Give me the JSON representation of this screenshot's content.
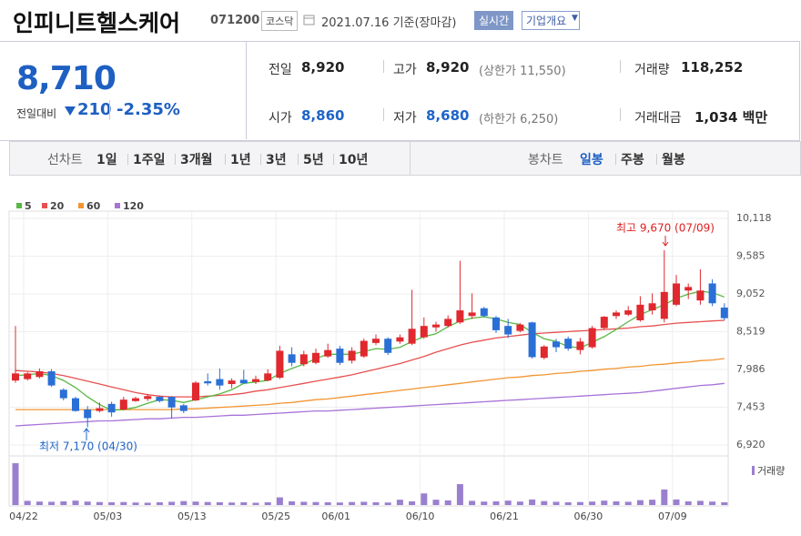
{
  "header": {
    "title": "인피니트헬스케어",
    "code": "071200",
    "market": "코스닥",
    "date": "2021.07.16 기준(장마감)",
    "buttons": [
      "실시간",
      "기업개요"
    ]
  },
  "summary": {
    "price": "8,710",
    "change_label": "전일대비",
    "change": "210",
    "change_pct": "-2.35%",
    "items": [
      {
        "label": "전일",
        "value": "8,920"
      },
      {
        "label": "고가",
        "value": "8,920",
        "note": "(상한가 11,550)"
      },
      {
        "label": "거래량",
        "value": "118,252"
      },
      {
        "label": "시가",
        "value": "8,860",
        "color": "#1e64c8"
      },
      {
        "label": "저가",
        "value": "8,680",
        "note": "(하한가 6,250)",
        "color": "#1e64c8"
      },
      {
        "label": "거래대금",
        "value": "1,034 백만"
      }
    ]
  },
  "tabs": {
    "line_label": "선차트",
    "line_options": [
      "1일",
      "1주일",
      "3개월",
      "1년",
      "3년",
      "5년",
      "10년"
    ],
    "candle_label": "봉차트",
    "candle_options": [
      "일봉",
      "주봉",
      "월봉"
    ],
    "selected": 0
  },
  "chart_data": {
    "type": "candlestick",
    "categories": [
      "04/22",
      null,
      null,
      null,
      null,
      null,
      null,
      "05/03",
      null,
      null,
      null,
      null,
      null,
      null,
      "05/13",
      null,
      null,
      null,
      null,
      null,
      null,
      "05/25",
      null,
      null,
      null,
      null,
      "06/01",
      null,
      null,
      null,
      null,
      null,
      null,
      "06/10",
      null,
      null,
      null,
      null,
      null,
      null,
      "06/21",
      null,
      null,
      null,
      null,
      null,
      null,
      "06/30",
      null,
      null,
      null,
      null,
      null,
      null,
      "07/09",
      null,
      null,
      null,
      null,
      null
    ],
    "open": [
      7830,
      7850,
      7880,
      7960,
      7700,
      7580,
      7420,
      7400,
      7500,
      7420,
      7540,
      7570,
      7600,
      7600,
      7480,
      7550,
      7820,
      7850,
      7780,
      7840,
      7810,
      7830,
      7870,
      8200,
      8060,
      8080,
      8170,
      8280,
      8110,
      8170,
      8360,
      8420,
      8380,
      8350,
      8440,
      8580,
      8600,
      8650,
      8740,
      8850,
      8720,
      8600,
      8530,
      8650,
      8150,
      8380,
      8420,
      8260,
      8300,
      8570,
      8740,
      8760,
      8680,
      8820,
      8700,
      8900,
      9100,
      8960,
      9200,
      8860
    ],
    "high": [
      8600,
      7950,
      8000,
      7990,
      7720,
      7600,
      7470,
      7520,
      7530,
      7600,
      7600,
      7640,
      7620,
      7610,
      7500,
      7820,
      7930,
      8000,
      7860,
      7980,
      7900,
      7990,
      8320,
      8300,
      8250,
      8280,
      8350,
      8320,
      8300,
      8420,
      8480,
      8440,
      8480,
      9110,
      8720,
      8660,
      8750,
      9520,
      9060,
      8870,
      8740,
      8700,
      8640,
      8660,
      8330,
      8420,
      8450,
      8430,
      8600,
      8740,
      8820,
      8880,
      9020,
      9060,
      9670,
      9320,
      9200,
      9400,
      9260,
      8920
    ],
    "low": [
      7800,
      7830,
      7860,
      7740,
      7550,
      7390,
      7170,
      7380,
      7320,
      7410,
      7530,
      7540,
      7520,
      7290,
      7370,
      7540,
      7760,
      7700,
      7720,
      7800,
      7780,
      7820,
      7850,
      8030,
      8030,
      8060,
      8150,
      8050,
      8070,
      8150,
      8330,
      8190,
      8350,
      8330,
      8420,
      8520,
      8580,
      8630,
      8700,
      8720,
      8500,
      8430,
      8510,
      8140,
      8130,
      8230,
      8250,
      8200,
      8280,
      8550,
      8700,
      8740,
      8660,
      8760,
      8650,
      8880,
      8980,
      8900,
      8880,
      8680
    ],
    "close": [
      7930,
      7930,
      7960,
      7760,
      7580,
      7400,
      7300,
      7440,
      7380,
      7560,
      7580,
      7610,
      7540,
      7450,
      7400,
      7800,
      7790,
      7760,
      7830,
      7790,
      7850,
      7930,
      8250,
      8080,
      8200,
      8220,
      8260,
      8080,
      8250,
      8390,
      8420,
      8220,
      8440,
      8560,
      8600,
      8620,
      8700,
      8820,
      8790,
      8740,
      8540,
      8480,
      8620,
      8160,
      8310,
      8300,
      8280,
      8380,
      8570,
      8730,
      8790,
      8820,
      8900,
      8920,
      9080,
      9200,
      9150,
      9100,
      8920,
      8710
    ],
    "volume": [
      1800000,
      180000,
      150000,
      140000,
      160000,
      190000,
      150000,
      130000,
      120000,
      130000,
      110000,
      100000,
      120000,
      140000,
      170000,
      150000,
      130000,
      120000,
      110000,
      120000,
      100000,
      120000,
      330000,
      160000,
      140000,
      130000,
      120000,
      110000,
      130000,
      140000,
      120000,
      110000,
      230000,
      160000,
      500000,
      230000,
      200000,
      900000,
      180000,
      150000,
      160000,
      190000,
      150000,
      240000,
      170000,
      140000,
      120000,
      130000,
      150000,
      190000,
      160000,
      140000,
      210000,
      230000,
      670000,
      240000,
      160000,
      180000,
      150000,
      118252
    ],
    "volume_label": "거래량",
    "volume_color": "#9b7fcf",
    "up_color": "#e0282e",
    "down_color": "#2a6fd6",
    "ma": [
      {
        "name": "5",
        "color": "#58b843",
        "values": [
          7900,
          7910,
          7930,
          7900,
          7830,
          7730,
          7600,
          7490,
          7410,
          7420,
          7450,
          7510,
          7560,
          7550,
          7520,
          7560,
          7600,
          7640,
          7700,
          7790,
          7810,
          7830,
          7930,
          8000,
          8060,
          8140,
          8200,
          8200,
          8200,
          8240,
          8280,
          8270,
          8300,
          8380,
          8450,
          8490,
          8590,
          8670,
          8710,
          8730,
          8700,
          8650,
          8620,
          8510,
          8420,
          8380,
          8310,
          8290,
          8370,
          8450,
          8550,
          8660,
          8760,
          8830,
          8900,
          8990,
          9050,
          9090,
          9070,
          9010
        ]
      },
      {
        "name": "20",
        "color": "#e85050",
        "values": [
          7970,
          7960,
          7950,
          7930,
          7900,
          7860,
          7820,
          7780,
          7740,
          7700,
          7660,
          7630,
          7610,
          7600,
          7600,
          7600,
          7610,
          7620,
          7630,
          7650,
          7680,
          7700,
          7730,
          7760,
          7790,
          7820,
          7850,
          7880,
          7910,
          7950,
          7990,
          8030,
          8070,
          8120,
          8170,
          8230,
          8280,
          8330,
          8370,
          8400,
          8430,
          8450,
          8470,
          8490,
          8500,
          8510,
          8520,
          8530,
          8540,
          8550,
          8560,
          8570,
          8590,
          8600,
          8620,
          8640,
          8650,
          8660,
          8670,
          8680
        ]
      },
      {
        "name": "60",
        "color": "#f29532",
        "values": [
          7420,
          7420,
          7420,
          7420,
          7420,
          7420,
          7420,
          7420,
          7420,
          7420,
          7420,
          7420,
          7420,
          7420,
          7430,
          7430,
          7440,
          7450,
          7460,
          7470,
          7480,
          7490,
          7510,
          7520,
          7540,
          7560,
          7570,
          7590,
          7610,
          7630,
          7650,
          7670,
          7690,
          7710,
          7730,
          7750,
          7770,
          7790,
          7810,
          7830,
          7850,
          7870,
          7880,
          7900,
          7910,
          7930,
          7940,
          7960,
          7970,
          7990,
          8000,
          8020,
          8030,
          8050,
          8060,
          8080,
          8090,
          8110,
          8120,
          8140
        ]
      },
      {
        "name": "120",
        "color": "#a872d8",
        "values": [
          7190,
          7200,
          7210,
          7220,
          7230,
          7240,
          7250,
          7260,
          7260,
          7270,
          7280,
          7290,
          7290,
          7300,
          7310,
          7310,
          7320,
          7330,
          7340,
          7340,
          7350,
          7360,
          7370,
          7380,
          7390,
          7400,
          7400,
          7410,
          7420,
          7430,
          7440,
          7450,
          7460,
          7470,
          7480,
          7490,
          7500,
          7510,
          7520,
          7530,
          7540,
          7550,
          7560,
          7570,
          7580,
          7590,
          7600,
          7610,
          7620,
          7630,
          7640,
          7650,
          7660,
          7680,
          7700,
          7720,
          7740,
          7760,
          7770,
          7790
        ]
      }
    ],
    "ylim": [
      6920,
      10118
    ],
    "yticks": [
      {
        "value": 6920,
        "label": "6,920"
      },
      {
        "value": 7453,
        "label": "7,453"
      },
      {
        "value": 7986,
        "label": "7,986"
      },
      {
        "value": 8519,
        "label": "8,519"
      },
      {
        "value": 9052,
        "label": "9,052"
      },
      {
        "value": 9585,
        "label": "9,585"
      },
      {
        "value": 10118,
        "label": "10,118"
      }
    ],
    "grid": true,
    "annotations": [
      {
        "text": "최고 9,670 (07/09)",
        "color": "#e02020"
      },
      {
        "text": "최저 7,170 (04/30)",
        "color": "#1e64c8"
      }
    ]
  }
}
